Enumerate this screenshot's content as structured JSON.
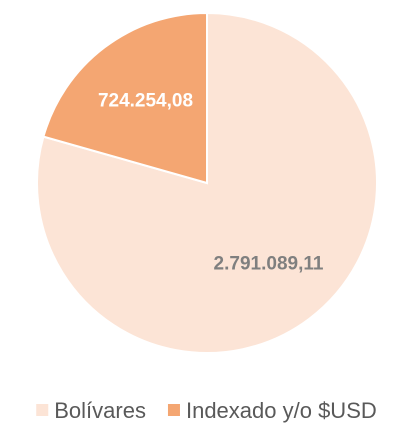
{
  "chart_data": {
    "type": "pie",
    "categories": [
      "Bolívares",
      "Indexado y/o $USD"
    ],
    "values": [
      2791089.11,
      724254.08
    ],
    "value_labels": [
      "2.791.089,11",
      "724.254,08"
    ],
    "colors": [
      "#fce4d6",
      "#f4a672"
    ],
    "label_colors": [
      "#7f7f7f",
      "#ffffff"
    ],
    "legend": "bottom"
  }
}
